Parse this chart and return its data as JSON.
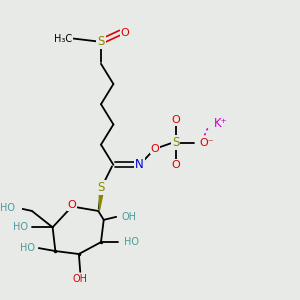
{
  "bg_color": "#e8eae8",
  "bond_color": "#000000",
  "bond_lw": 1.3,
  "layout": {
    "xlim": [
      0,
      1
    ],
    "ylim": [
      0,
      1
    ],
    "figsize": [
      3.0,
      3.0
    ],
    "dpi": 100
  },
  "colors": {
    "black": "#000000",
    "red": "#dd0000",
    "yellow": "#888800",
    "blue": "#0000cc",
    "teal": "#4a9a9a",
    "magenta": "#cc00cc",
    "bg": "#e8eae8"
  }
}
